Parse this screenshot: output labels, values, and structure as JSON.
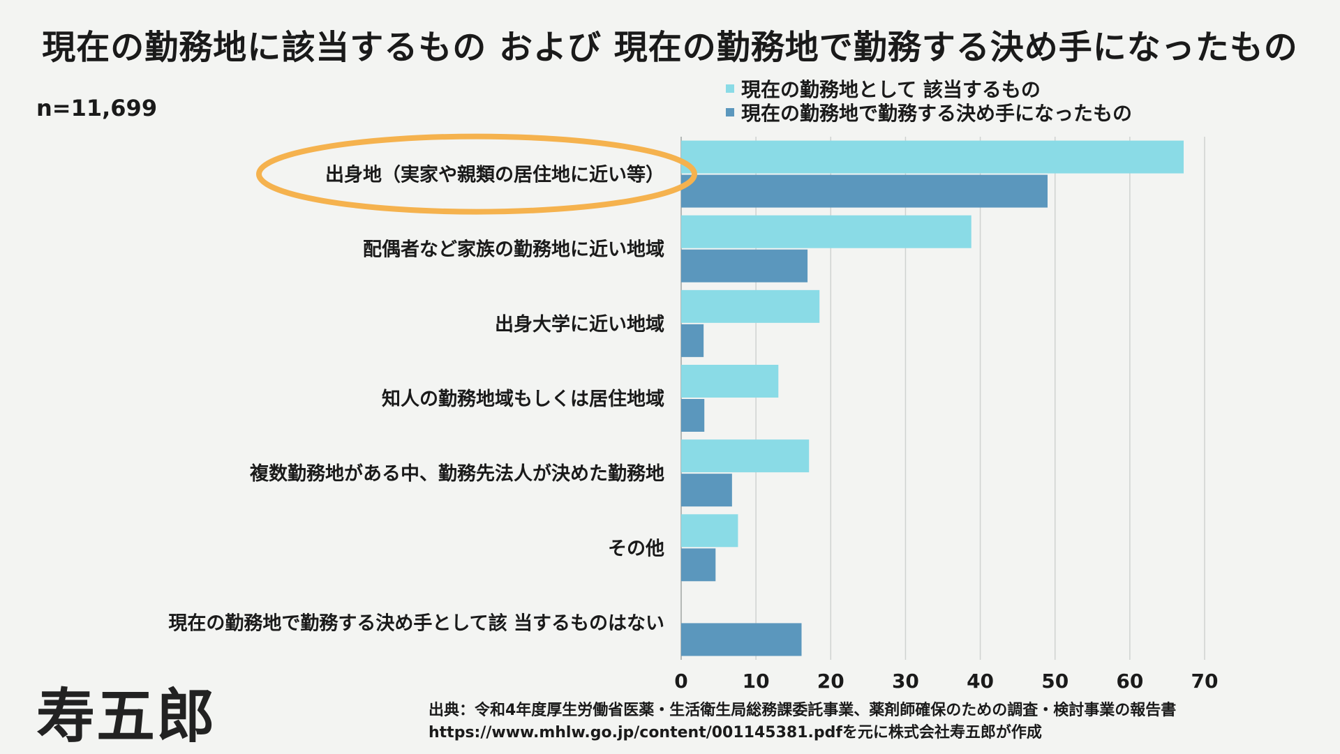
{
  "title": "現在の勤務地に該当するもの および 現在の勤務地で勤務する決め手になったもの",
  "n_label": "n=11,699",
  "legend": [
    {
      "label": "現在の勤務地として 該当するもの",
      "color": "#8adbe6"
    },
    {
      "label": "現在の勤務地で勤務する決め手になったもの",
      "color": "#5b97bd"
    }
  ],
  "source": {
    "line1": "出典：令和4年度厚生労働省医薬・生活衛生局総務課委託事業、薬剤師確保のための調査・検討事業の報告書",
    "line2": "https://www.mhlw.go.jp/content/001145381.pdfを元に株式会社寿五郎が作成"
  },
  "logo_text": "寿五郎",
  "highlight_color": "#f5b24e",
  "chart_data": {
    "type": "bar",
    "orientation": "horizontal",
    "categories": [
      "出身地（実家や親類の居住地に近い等）",
      "配偶者など家族の勤務地に近い地域",
      "出身大学に近い地域",
      "知人の勤務地域もしくは居住地域",
      "複数勤務地がある中、勤務先法人が決めた勤務地",
      "その他",
      "現在の勤務地で勤務する決め手として該 当するものはない"
    ],
    "series": [
      {
        "name": "現在の勤務地として 該当するもの",
        "values": [
          67.2,
          38.8,
          18.5,
          13.0,
          17.1,
          7.6,
          null
        ]
      },
      {
        "name": "現在の勤務地で勤務する決め手になったもの",
        "values": [
          49.0,
          16.9,
          3.0,
          3.1,
          6.8,
          4.6,
          16.1
        ]
      }
    ],
    "xlim": [
      0,
      70
    ],
    "xticks": [
      0,
      10,
      20,
      30,
      40,
      50,
      60,
      70
    ],
    "grid": true,
    "legend_position": "top-right",
    "highlighted_category": "出身地（実家や親類の居住地に近い等）"
  }
}
